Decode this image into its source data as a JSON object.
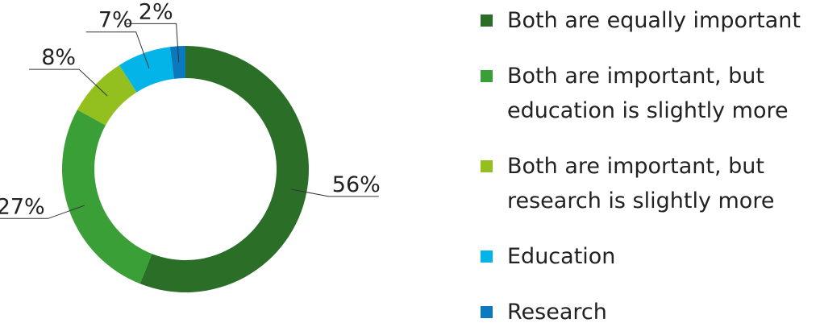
{
  "chart_data": {
    "type": "donut",
    "categories": [
      "Both are equally important",
      "Both are important, but\neducation is slightly more",
      "Both are important, but\nresearch is slightly more",
      "Education",
      "Research"
    ],
    "values": [
      56,
      27,
      8,
      7,
      2
    ],
    "value_labels": [
      "56%",
      "27%",
      "8%",
      "7%",
      "2%"
    ],
    "colors": [
      "#2b6e27",
      "#3a9f36",
      "#93c01f",
      "#03b4e8",
      "#0b79be"
    ]
  }
}
